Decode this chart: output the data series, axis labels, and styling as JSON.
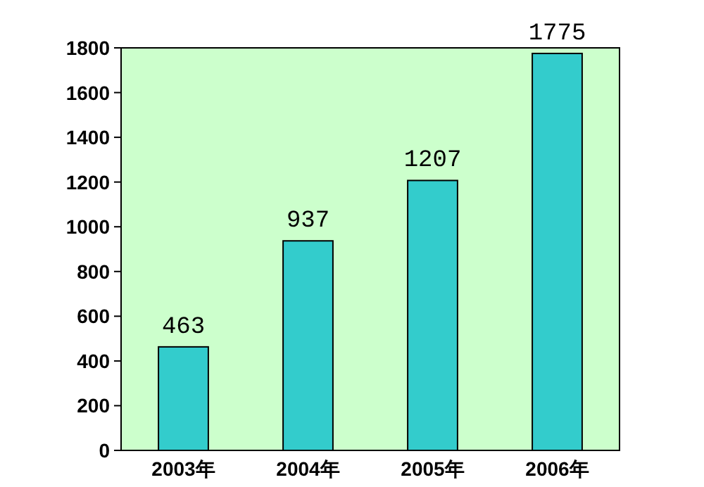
{
  "chart_data": {
    "type": "bar",
    "categories": [
      "2003年",
      "2004年",
      "2005年",
      "2006年"
    ],
    "values": [
      463,
      937,
      1207,
      1775
    ],
    "color": "#33cccc",
    "ylim": [
      0,
      1800
    ],
    "yticks": [
      0,
      200,
      400,
      600,
      800,
      1000,
      1200,
      1400,
      1600,
      1800
    ],
    "data_labels": true
  }
}
